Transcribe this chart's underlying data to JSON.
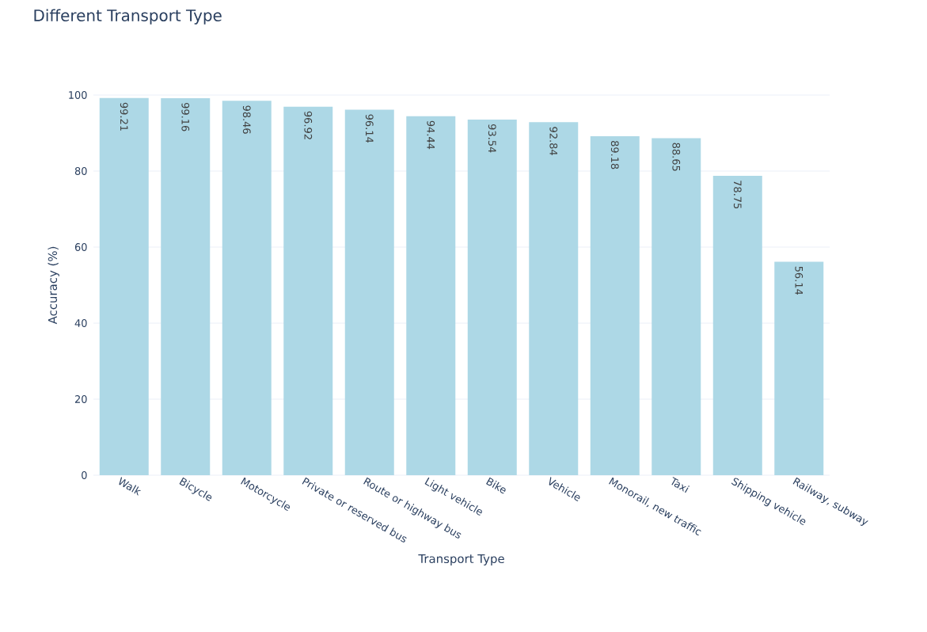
{
  "chart_data": {
    "type": "bar",
    "title": "Different Transport Type",
    "xlabel": "Transport Type",
    "ylabel": "Accuracy (%)",
    "categories": [
      "Walk",
      "Bicycle",
      "Motorcycle",
      "Private or reserved bus",
      "Route or highway bus",
      "Light vehicle",
      "Bike",
      "Vehicle",
      "Monorail, new traffic",
      "Taxi",
      "Shipping vehicle",
      "Railway, subway"
    ],
    "values": [
      99.21,
      99.16,
      98.46,
      96.92,
      96.14,
      94.44,
      93.54,
      92.84,
      89.18,
      88.65,
      78.75,
      56.14
    ],
    "color": "#add8e6",
    "ylim": [
      0,
      100
    ],
    "yticks": [
      0,
      20,
      40,
      60,
      80,
      100
    ],
    "grid": "y",
    "data_labels": true
  }
}
